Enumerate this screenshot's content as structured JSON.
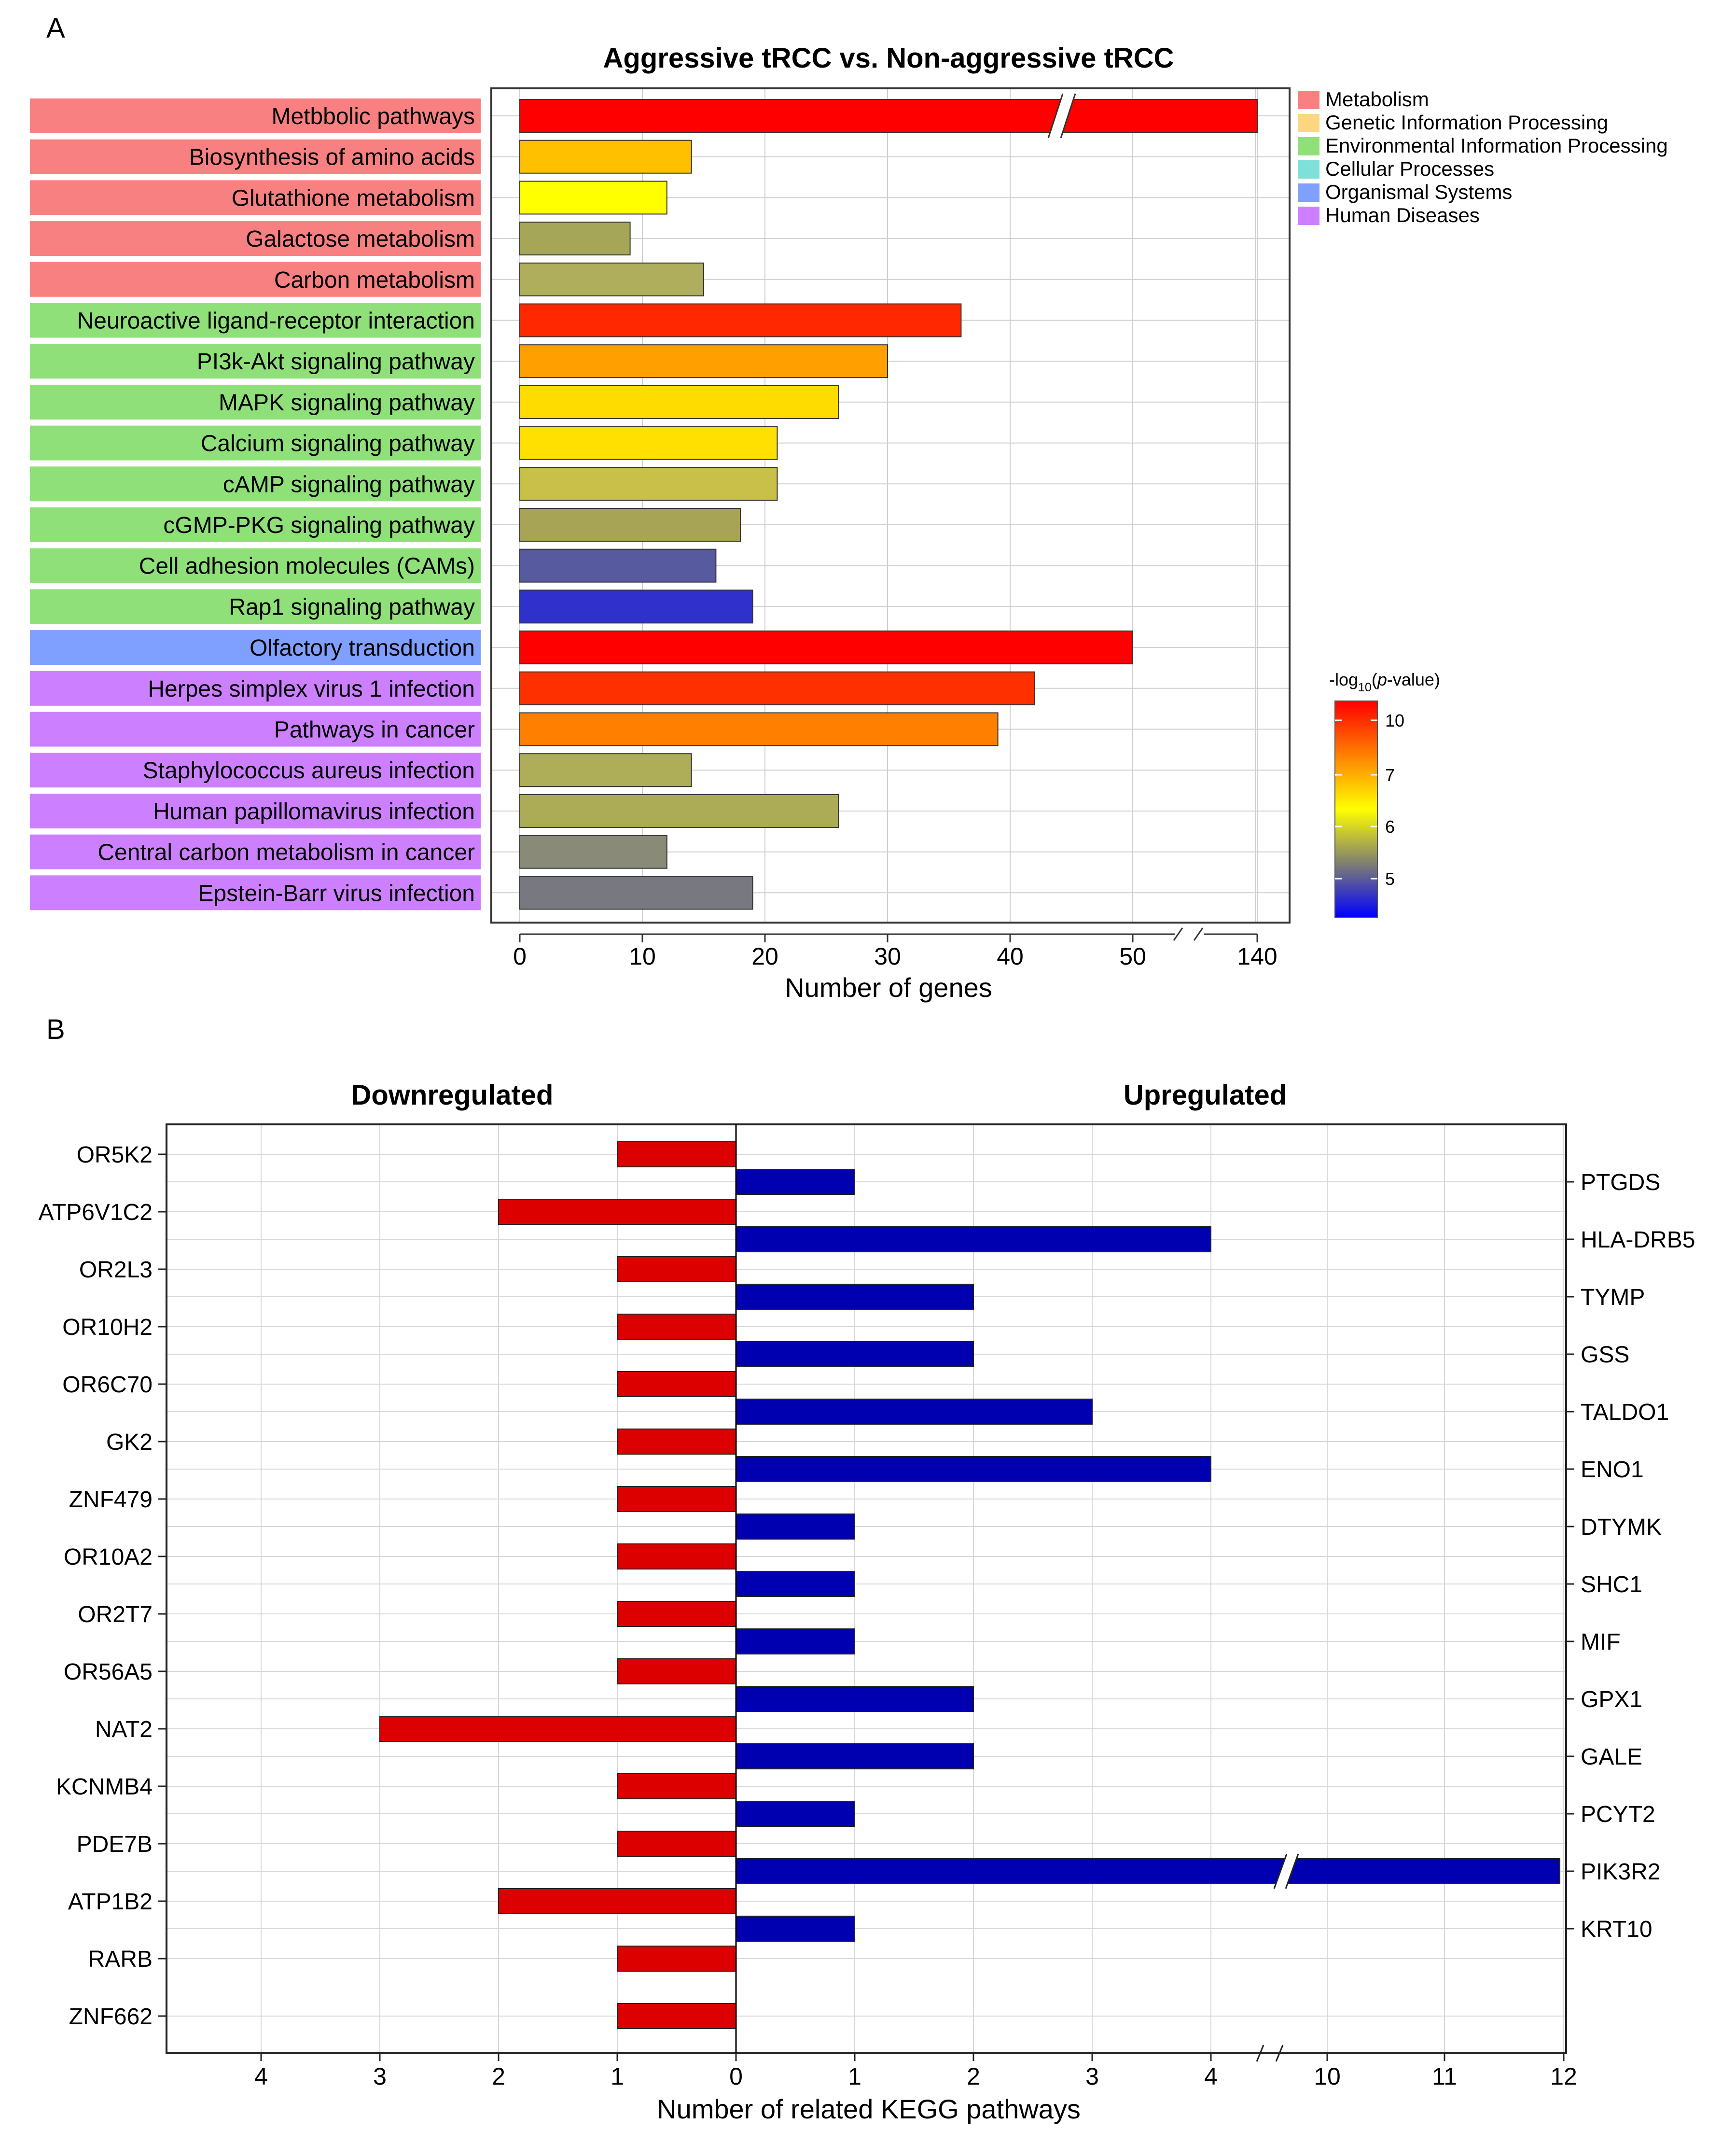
{
  "panel_labels": {
    "a": "A",
    "b": "B"
  },
  "chart_data": [
    {
      "type": "bar",
      "orientation": "horizontal",
      "title": "Aggressive tRCC vs. Non-aggressive tRCC",
      "xlabel": "Number of genes",
      "ylabel": "",
      "xlim": [
        0,
        140
      ],
      "x_ticks": [
        "0",
        "10",
        "20",
        "30",
        "40",
        "50",
        "140"
      ],
      "axis_break": "between 50 and 140",
      "grid": true,
      "categories": [
        "Metbbolic pathways",
        "Biosynthesis of amino acids",
        "Glutathione metabolism",
        "Galactose metabolism",
        "Carbon metabolism",
        "Neuroactive ligand-receptor interaction",
        "PI3k-Akt signaling pathway",
        "MAPK signaling pathway",
        "Calcium signaling pathway",
        "cAMP signaling pathway",
        "cGMP-PKG signaling pathway",
        "Cell adhesion molecules (CAMs)",
        "Rap1 signaling pathway",
        "Olfactory transduction",
        "Herpes simplex virus 1 infection",
        "Pathways in cancer",
        "Staphylococcus aureus infection",
        "Human papillomavirus infection",
        "Central carbon metabolism in cancer",
        "Epstein-Barr virus infection"
      ],
      "values": [
        140,
        14,
        12,
        9,
        15,
        36,
        30,
        26,
        21,
        21,
        18,
        16,
        19,
        50,
        42,
        39,
        14,
        26,
        12,
        19
      ],
      "pathway_class": [
        "Metabolism",
        "Metabolism",
        "Metabolism",
        "Metabolism",
        "Metabolism",
        "Environmental Information Processing",
        "Environmental Information Processing",
        "Environmental Information Processing",
        "Environmental Information Processing",
        "Environmental Information Processing",
        "Environmental Information Processing",
        "Environmental Information Processing",
        "Environmental Information Processing",
        "Organismal Systems",
        "Human Diseases",
        "Human Diseases",
        "Human Diseases",
        "Human Diseases",
        "Human Diseases",
        "Human Diseases"
      ],
      "bar_colors": [
        "#ff0000",
        "#ffc000",
        "#ffff00",
        "#a6a658",
        "#aeae5c",
        "#ff2800",
        "#ffa000",
        "#ffdc00",
        "#ffe000",
        "#c8c048",
        "#a8a455",
        "#585aa0",
        "#3030cc",
        "#ff0000",
        "#ff3000",
        "#ff8000",
        "#aeae58",
        "#acac56",
        "#8a8a78",
        "#787880"
      ],
      "category_legend": [
        {
          "label": "Metabolism",
          "color": "#f88080"
        },
        {
          "label": "Genetic Information Processing",
          "color": "#fcd680"
        },
        {
          "label": "Environmental Information Processing",
          "color": "#90e07a"
        },
        {
          "label": "Cellular Processes",
          "color": "#7ee0d8"
        },
        {
          "label": "Organismal Systems",
          "color": "#80a0ff"
        },
        {
          "label": "Human Diseases",
          "color": "#cc80ff"
        }
      ],
      "color_scale": {
        "title_prefix": "-log",
        "title_sub": "10",
        "title_open": "(",
        "title_var": "p",
        "title_suffix": "-value)",
        "ticks": [
          "10",
          "7",
          "6",
          "5"
        ],
        "colors": [
          "#ff0000",
          "#ff8000",
          "#ffff00",
          "#808070",
          "#0000ff"
        ]
      }
    },
    {
      "type": "bar",
      "orientation": "horizontal-diverging",
      "xlabel": "Number of related KEGG pathways",
      "left_title": "Downregulated",
      "right_title": "Upregulated",
      "axis_break": "between 4 and 10 on the upregulated side",
      "grid": true,
      "x_ticks_left": [
        "4",
        "3",
        "2",
        "1",
        "0"
      ],
      "x_ticks_right": [
        "1",
        "2",
        "3",
        "4",
        "10",
        "11",
        "12"
      ],
      "series": [
        {
          "name": "Downregulated",
          "color": "#dd0000",
          "categories": [
            "OR5K2",
            "ATP6V1C2",
            "OR2L3",
            "OR10H2",
            "OR6C70",
            "GK2",
            "ZNF479",
            "OR10A2",
            "OR2T7",
            "OR56A5",
            "NAT2",
            "KCNMB4",
            "PDE7B",
            "ATP1B2",
            "RARB",
            "ZNF662"
          ],
          "values": [
            1,
            2,
            1,
            1,
            1,
            1,
            1,
            1,
            1,
            1,
            3,
            1,
            1,
            2,
            1,
            1
          ]
        },
        {
          "name": "Upregulated",
          "color": "#0000b0",
          "categories": [
            "PTGDS",
            "HLA-DRB5",
            "TYMP",
            "GSS",
            "TALDO1",
            "ENO1",
            "DTYMK",
            "SHC1",
            "MIF",
            "GPX1",
            "GALE",
            "PCYT2",
            "PIK3R2",
            "KRT10"
          ],
          "values": [
            1,
            4,
            2,
            2,
            3,
            4,
            1,
            1,
            1,
            2,
            2,
            1,
            12,
            1
          ]
        }
      ]
    }
  ]
}
